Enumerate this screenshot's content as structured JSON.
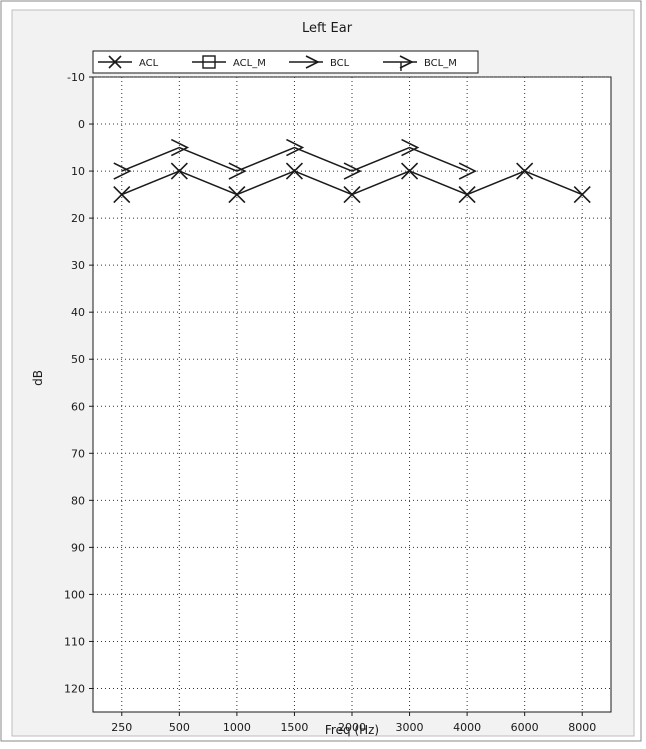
{
  "chart_data": {
    "type": "line",
    "title": "Left Ear",
    "xlabel": "Freq (Hz)",
    "ylabel": "dB",
    "categories": [
      "250",
      "500",
      "1000",
      "1500",
      "2000",
      "3000",
      "4000",
      "6000",
      "8000"
    ],
    "yticks": [
      "-10",
      "0",
      "10",
      "20",
      "30",
      "40",
      "50",
      "60",
      "70",
      "80",
      "90",
      "100",
      "110",
      "120"
    ],
    "ylim": [
      -10,
      125
    ],
    "y_inverted": true,
    "grid": true,
    "grid_style": "dotted",
    "legend_position": "top",
    "legend": [
      {
        "label": "ACL",
        "marker": "x-icon"
      },
      {
        "label": "ACL_M",
        "marker": "square-icon"
      },
      {
        "label": "BCL",
        "marker": "arrow-right-icon"
      },
      {
        "label": "BCL_M",
        "marker": "bracket-arrow-icon"
      }
    ],
    "series": [
      {
        "name": "ACL",
        "marker": "x",
        "values": [
          15,
          10,
          15,
          10,
          15,
          10,
          15,
          10,
          15
        ]
      },
      {
        "name": "BCL",
        "marker": "arrow",
        "values": [
          10,
          5,
          10,
          5,
          10,
          5,
          10,
          null,
          null
        ]
      }
    ],
    "colors": {
      "background": "#f2f2f2",
      "plot": "#ffffff",
      "ink": "#1a1a1a",
      "grid": "#333333"
    }
  }
}
